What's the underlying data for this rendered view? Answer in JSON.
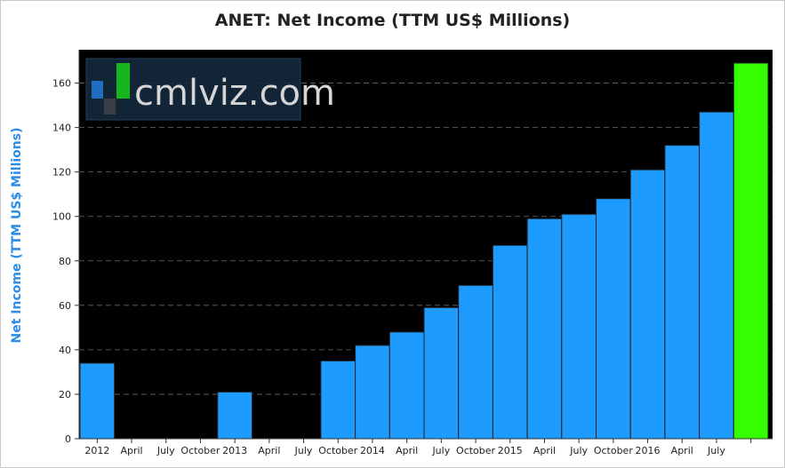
{
  "chart_data": {
    "type": "bar",
    "title": "ANET: Net Income (TTM US$ Millions)",
    "xlabel": "",
    "ylabel": "Net Income (TTM US$ Millions)",
    "ylim": [
      0,
      175
    ],
    "yticks": [
      0,
      20,
      40,
      60,
      80,
      100,
      120,
      140,
      160
    ],
    "x_tick_labels": [
      "2012",
      "April",
      "July",
      "October",
      "2013",
      "April",
      "July",
      "October",
      "2014",
      "April",
      "July",
      "October",
      "2015",
      "April",
      "July",
      "October",
      "2016",
      "April",
      "July"
    ],
    "values": [
      34,
      0,
      0,
      0,
      21,
      0,
      0,
      35,
      42,
      48,
      59,
      69,
      87,
      99,
      101,
      108,
      121,
      132,
      147,
      169
    ],
    "bar_colors": {
      "default": "#1e9bff",
      "latest": "#33ff00"
    },
    "background": "#000000",
    "grid": true
  },
  "watermark": {
    "text": "cmlviz.com"
  }
}
